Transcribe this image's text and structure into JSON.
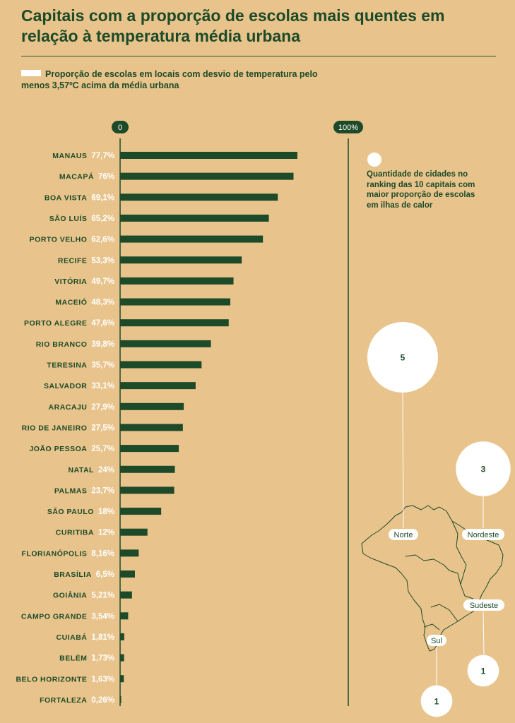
{
  "title": "Capitais com a proporção de escolas mais quentes em relação à temperatura média urbana",
  "legend": {
    "label": "Proporção de escolas em locais com desvio de temperatura pelo menos 3,57ºC acima da média urbana"
  },
  "bubble_legend": {
    "label": "Quantidade de cidades no ranking das 10 capitais com maior proporção de escolas em ilhas de calor"
  },
  "colors": {
    "background": "#E8C48C",
    "bar": "#1D4A28",
    "value_label": "#FFFFFF",
    "bubble": "#FFFFFF"
  },
  "chart_data": [
    {
      "type": "bar",
      "orientation": "horizontal",
      "title": "Capitais com a proporção de escolas mais quentes em relação à temperatura média urbana",
      "xlim": [
        0,
        100
      ],
      "axis_ticks": [
        "0",
        "100%"
      ],
      "grid": false,
      "categories": [
        "MANAUS",
        "MACAPÁ",
        "BOA VISTA",
        "SÃO LUÍS",
        "PORTO VELHO",
        "RECIFE",
        "VITÓRIA",
        "MACEIÓ",
        "PORTO ALEGRE",
        "RIO BRANCO",
        "TERESINA",
        "SALVADOR",
        "ARACAJU",
        "RIO DE JANEIRO",
        "JOÃO PESSOA",
        "NATAL",
        "PALMAS",
        "SÃO PAULO",
        "CURITIBA",
        "FLORIANÓPOLIS",
        "BRASÍLIA",
        "GOIÂNIA",
        "CAMPO GRANDE",
        "CUIABÁ",
        "BELÉM",
        "BELO HORIZONTE",
        "FORTALEZA"
      ],
      "values": [
        77.7,
        76,
        69.1,
        65.2,
        62.6,
        53.3,
        49.7,
        48.3,
        47.6,
        39.8,
        35.7,
        33.1,
        27.9,
        27.5,
        25.7,
        24,
        23.7,
        18,
        12,
        8.16,
        6.5,
        5.21,
        3.54,
        1.81,
        1.73,
        1.63,
        0.26
      ],
      "value_labels": [
        "77,7%",
        "76%",
        "69,1%",
        "65,2%",
        "62,6%",
        "53,3%",
        "49,7%",
        "48,3%",
        "47,6%",
        "39,8%",
        "35,7%",
        "33,1%",
        "27,9%",
        "27,5%",
        "25,7%",
        "24%",
        "23,7%",
        "18%",
        "12%",
        "8,16%",
        "6,5%",
        "5,21%",
        "3,54%",
        "1,81%",
        "1,73%",
        "1,63%",
        "0,26%"
      ]
    },
    {
      "type": "bubble",
      "categories": [
        "Norte",
        "Nordeste",
        "Sudeste",
        "Sul"
      ],
      "values": [
        5,
        3,
        1,
        1
      ],
      "value_labels": [
        "5",
        "3",
        "1",
        "1"
      ]
    }
  ]
}
